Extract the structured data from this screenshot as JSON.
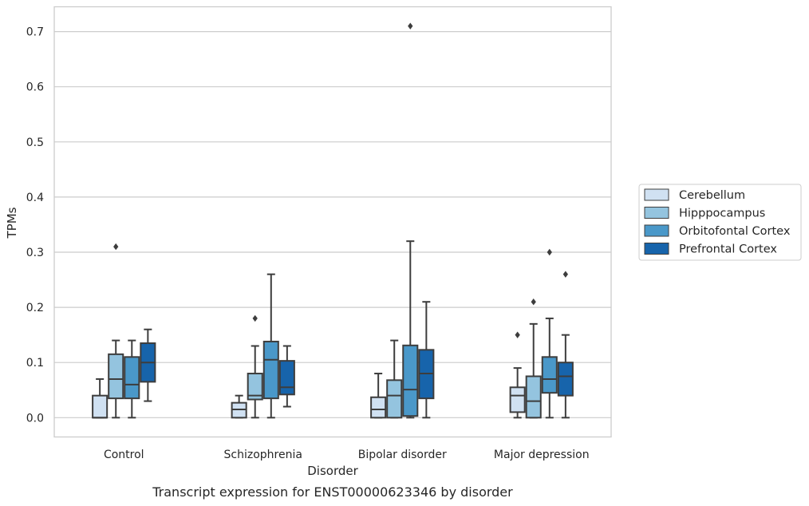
{
  "chart_data": {
    "type": "box",
    "caption": "Transcript expression for ENST00000623346 by disorder",
    "xlabel": "Disorder",
    "ylabel": "TPMs",
    "ylim": [
      -0.035,
      0.745
    ],
    "yticks": [
      "0.0",
      "0.1",
      "0.2",
      "0.3",
      "0.4",
      "0.5",
      "0.6",
      "0.7"
    ],
    "grid": "horizontal",
    "legend_position": "right",
    "categories": [
      "Control",
      "Schizophrenia",
      "Bipolar disorder",
      "Major depression"
    ],
    "series": [
      {
        "name": "Cerebellum",
        "color": "#d0e1f2",
        "boxes": [
          {
            "whislo": 0.0,
            "q1": 0.0,
            "med": 0.0,
            "q3": 0.04,
            "whishi": 0.07,
            "fliers": []
          },
          {
            "whislo": 0.0,
            "q1": 0.0,
            "med": 0.015,
            "q3": 0.027,
            "whishi": 0.04,
            "fliers": []
          },
          {
            "whislo": 0.0,
            "q1": 0.0,
            "med": 0.015,
            "q3": 0.037,
            "whishi": 0.08,
            "fliers": []
          },
          {
            "whislo": 0.0,
            "q1": 0.01,
            "med": 0.04,
            "q3": 0.055,
            "whishi": 0.09,
            "fliers": [
              0.15
            ]
          }
        ]
      },
      {
        "name": "Hipppocampus",
        "color": "#94c4df",
        "boxes": [
          {
            "whislo": 0.0,
            "q1": 0.035,
            "med": 0.07,
            "q3": 0.115,
            "whishi": 0.14,
            "fliers": [
              0.31
            ]
          },
          {
            "whislo": 0.0,
            "q1": 0.033,
            "med": 0.04,
            "q3": 0.08,
            "whishi": 0.13,
            "fliers": [
              0.18
            ]
          },
          {
            "whislo": 0.0,
            "q1": 0.0,
            "med": 0.04,
            "q3": 0.068,
            "whishi": 0.14,
            "fliers": []
          },
          {
            "whislo": 0.0,
            "q1": 0.0,
            "med": 0.03,
            "q3": 0.075,
            "whishi": 0.17,
            "fliers": [
              0.21
            ]
          }
        ]
      },
      {
        "name": "Orbitofontal Cortex",
        "color": "#4a98c9",
        "boxes": [
          {
            "whislo": 0.0,
            "q1": 0.035,
            "med": 0.06,
            "q3": 0.11,
            "whishi": 0.14,
            "fliers": []
          },
          {
            "whislo": 0.0,
            "q1": 0.035,
            "med": 0.105,
            "q3": 0.138,
            "whishi": 0.26,
            "fliers": []
          },
          {
            "whislo": 0.0,
            "q1": 0.003,
            "med": 0.051,
            "q3": 0.131,
            "whishi": 0.32,
            "fliers": [
              0.71
            ]
          },
          {
            "whislo": 0.0,
            "q1": 0.045,
            "med": 0.07,
            "q3": 0.11,
            "whishi": 0.18,
            "fliers": [
              0.3
            ]
          }
        ]
      },
      {
        "name": "Prefrontal Cortex",
        "color": "#1764ab",
        "boxes": [
          {
            "whislo": 0.03,
            "q1": 0.065,
            "med": 0.1,
            "q3": 0.135,
            "whishi": 0.16,
            "fliers": []
          },
          {
            "whislo": 0.02,
            "q1": 0.042,
            "med": 0.055,
            "q3": 0.103,
            "whishi": 0.13,
            "fliers": []
          },
          {
            "whislo": 0.0,
            "q1": 0.035,
            "med": 0.08,
            "q3": 0.123,
            "whishi": 0.21,
            "fliers": []
          },
          {
            "whislo": 0.0,
            "q1": 0.04,
            "med": 0.075,
            "q3": 0.1,
            "whishi": 0.15,
            "fliers": [
              0.26
            ]
          }
        ]
      }
    ]
  }
}
